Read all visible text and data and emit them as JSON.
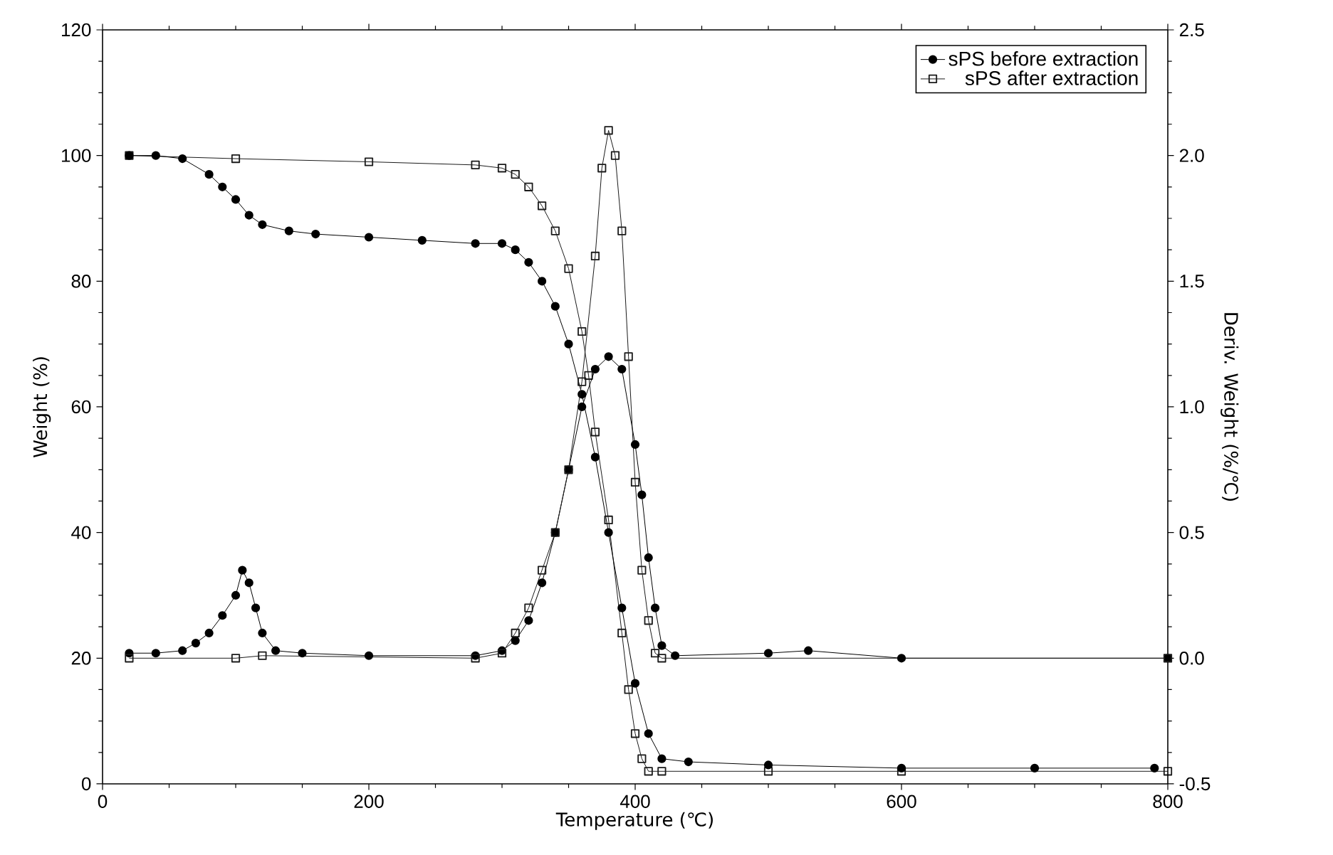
{
  "chart_data": {
    "type": "line",
    "xlabel": "Temperature (℃)",
    "ylabel": "Weight (%)",
    "y2label": "Deriv. Weight (%/℃)",
    "xlim": [
      0,
      800
    ],
    "xticks": [
      0,
      200,
      400,
      600,
      800
    ],
    "ylim": [
      0,
      120
    ],
    "yticks": [
      0,
      20,
      40,
      60,
      80,
      100,
      120
    ],
    "y2lim": [
      -0.5,
      2.5
    ],
    "y2ticks": [
      {
        "value": -0.5,
        "label": "-0.5"
      },
      {
        "value": 0,
        "label": "0.0"
      },
      {
        "value": 0.5,
        "label": "0.5"
      },
      {
        "value": 1,
        "label": "1.0"
      },
      {
        "value": 1.5,
        "label": "1.5"
      },
      {
        "value": 2,
        "label": "2.0"
      },
      {
        "value": 2.5,
        "label": "2.5"
      }
    ],
    "legend": "top right",
    "grid": false,
    "line_style": "solid",
    "series": [
      {
        "name": "sPS before extraction",
        "color": "#000000",
        "marker": "circle",
        "x": [
          20,
          40,
          60,
          80,
          90,
          100,
          110,
          120,
          140,
          160,
          200,
          240,
          280,
          300,
          310,
          320,
          330,
          340,
          350,
          360,
          370,
          380,
          390,
          400,
          410,
          420,
          440,
          500,
          600,
          700,
          790
        ],
        "values": [
          100,
          100,
          99.5,
          97,
          95,
          93,
          90.5,
          89,
          88,
          87.5,
          87,
          86.5,
          86,
          86,
          85,
          83,
          80,
          76,
          70,
          62,
          52,
          40,
          28,
          16,
          8,
          4,
          3.5,
          3,
          2.5,
          2.5,
          2.5
        ]
      },
      {
        "name": "sPS after extraction",
        "color": "#1a1a1a",
        "marker": "square",
        "x": [
          20,
          100,
          200,
          280,
          300,
          310,
          320,
          330,
          340,
          350,
          360,
          365,
          370,
          380,
          390,
          395,
          400,
          405,
          410,
          420,
          500,
          600,
          800
        ],
        "values": [
          100,
          99.5,
          99,
          98.5,
          98,
          97,
          95,
          92,
          88,
          82,
          72,
          65,
          56,
          42,
          24,
          15,
          8,
          4,
          2,
          2,
          2,
          2,
          2
        ]
      },
      {
        "color": "#000000",
        "marker": "circle",
        "axis": "y2",
        "x": [
          20,
          40,
          60,
          70,
          80,
          90,
          100,
          105,
          110,
          115,
          120,
          130,
          150,
          200,
          280,
          300,
          310,
          320,
          330,
          340,
          350,
          360,
          370,
          380,
          390,
          400,
          405,
          410,
          415,
          420,
          430,
          500,
          530,
          600,
          800
        ],
        "values": [
          0.02,
          0.02,
          0.03,
          0.06,
          0.1,
          0.17,
          0.25,
          0.35,
          0.3,
          0.2,
          0.1,
          0.03,
          0.02,
          0.01,
          0.01,
          0.03,
          0.07,
          0.15,
          0.3,
          0.5,
          0.75,
          1.0,
          1.15,
          1.2,
          1.15,
          0.85,
          0.65,
          0.4,
          0.2,
          0.05,
          0.01,
          0.02,
          0.03,
          0.0,
          0.0
        ]
      },
      {
        "color": "#1a1a1a",
        "marker": "square",
        "axis": "y2",
        "x": [
          20,
          100,
          120,
          280,
          300,
          310,
          320,
          330,
          340,
          350,
          360,
          370,
          375,
          380,
          385,
          390,
          395,
          400,
          405,
          410,
          415,
          420,
          800
        ],
        "values": [
          0,
          0,
          0.01,
          0,
          0.02,
          0.1,
          0.2,
          0.35,
          0.5,
          0.75,
          1.1,
          1.6,
          1.95,
          2.1,
          2.0,
          1.7,
          1.2,
          0.7,
          0.35,
          0.15,
          0.02,
          0,
          0
        ]
      }
    ]
  }
}
